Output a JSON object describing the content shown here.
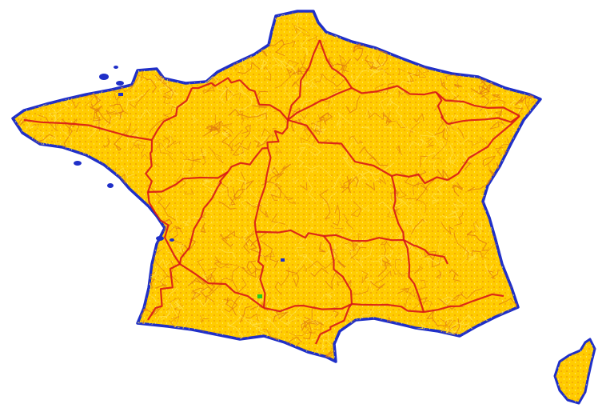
{
  "map": {
    "colors": {
      "background": "#ffffff",
      "land": "#ffcc00",
      "land_light": "#ffe24a",
      "coast": "#1f2fc8",
      "major_roads": "#d81818",
      "minor_roads": "#e07a10",
      "marker_green": "#22cc22",
      "marker_blue": "#1f2fc8"
    },
    "regions": [
      {
        "name": "mainland-france",
        "label": ""
      },
      {
        "name": "corsica",
        "label": ""
      }
    ]
  }
}
